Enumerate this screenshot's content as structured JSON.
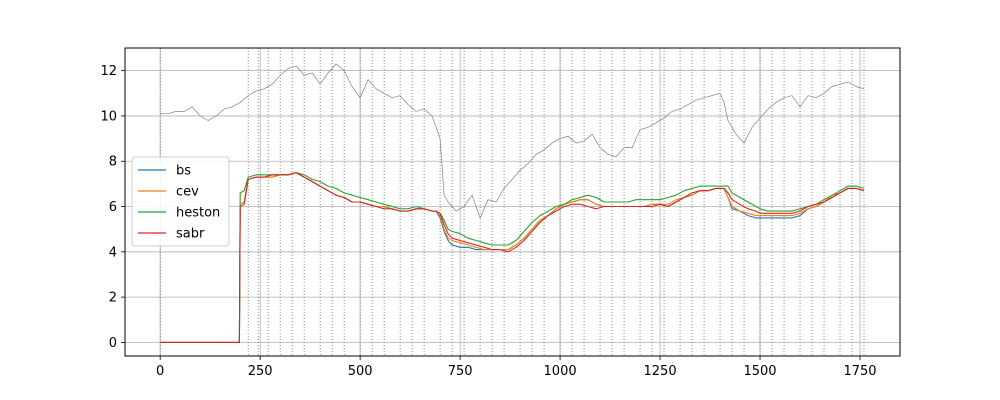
{
  "chart_data": {
    "type": "line",
    "title": "",
    "xlabel": "",
    "ylabel": "",
    "xlim": [
      -88,
      1850
    ],
    "ylim": [
      -0.6,
      13.0
    ],
    "xticks": [
      0,
      250,
      500,
      750,
      1000,
      1250,
      1500,
      1750
    ],
    "yticks": [
      0,
      2,
      4,
      6,
      8,
      10,
      12
    ],
    "grid": true,
    "legend_position": "left",
    "vertical_markers": [
      0,
      220,
      245,
      270,
      300,
      330,
      360,
      400,
      430,
      460,
      500,
      530,
      560,
      600,
      630,
      660,
      700,
      730,
      760,
      800,
      830,
      860,
      900,
      930,
      960,
      1000,
      1030,
      1060,
      1100,
      1130,
      1160,
      1200,
      1230,
      1260,
      1300,
      1330,
      1360,
      1400,
      1430,
      1460,
      1500,
      1530,
      1560,
      1600,
      1630,
      1660,
      1700,
      1730,
      1760
    ],
    "underlying": {
      "color": "#808080",
      "x": [
        0,
        20,
        40,
        60,
        80,
        100,
        120,
        140,
        160,
        180,
        200,
        220,
        240,
        260,
        280,
        300,
        320,
        340,
        360,
        380,
        400,
        420,
        440,
        460,
        480,
        500,
        520,
        540,
        560,
        580,
        600,
        620,
        640,
        660,
        680,
        700,
        710,
        720,
        740,
        760,
        780,
        800,
        820,
        840,
        860,
        880,
        900,
        920,
        940,
        960,
        980,
        1000,
        1020,
        1040,
        1060,
        1080,
        1100,
        1120,
        1140,
        1160,
        1180,
        1200,
        1220,
        1240,
        1260,
        1280,
        1300,
        1320,
        1340,
        1360,
        1380,
        1400,
        1410,
        1420,
        1440,
        1460,
        1480,
        1500,
        1520,
        1540,
        1560,
        1580,
        1600,
        1620,
        1640,
        1660,
        1680,
        1700,
        1720,
        1740,
        1760
      ],
      "values": [
        10.1,
        10.1,
        10.2,
        10.2,
        10.4,
        10.0,
        9.8,
        10.0,
        10.3,
        10.4,
        10.6,
        10.9,
        11.1,
        11.2,
        11.4,
        11.8,
        12.1,
        12.2,
        11.8,
        11.9,
        11.4,
        11.9,
        12.3,
        12.0,
        11.3,
        10.8,
        11.6,
        11.2,
        11.0,
        10.8,
        10.9,
        10.5,
        10.2,
        10.3,
        10.0,
        9.0,
        6.5,
        6.2,
        5.8,
        6.0,
        6.5,
        5.5,
        6.3,
        6.2,
        6.8,
        7.2,
        7.6,
        7.9,
        8.3,
        8.5,
        8.8,
        9.0,
        9.1,
        8.8,
        8.9,
        9.2,
        8.6,
        8.3,
        8.2,
        8.6,
        8.6,
        9.4,
        9.5,
        9.7,
        9.9,
        10.2,
        10.3,
        10.5,
        10.7,
        10.8,
        10.9,
        11.0,
        10.6,
        9.8,
        9.2,
        8.8,
        9.5,
        9.9,
        10.3,
        10.6,
        10.8,
        10.9,
        10.4,
        10.9,
        10.8,
        11.0,
        11.3,
        11.4,
        11.5,
        11.3,
        11.2
      ]
    },
    "series": [
      {
        "name": "bs",
        "color": "#1f77b4",
        "x": [
          0,
          198,
          200,
          210,
          220,
          240,
          260,
          280,
          300,
          320,
          340,
          360,
          380,
          400,
          420,
          440,
          460,
          480,
          500,
          520,
          540,
          560,
          580,
          600,
          620,
          640,
          660,
          680,
          690,
          700,
          710,
          720,
          730,
          750,
          770,
          790,
          810,
          830,
          850,
          870,
          890,
          910,
          930,
          950,
          970,
          990,
          1010,
          1030,
          1050,
          1070,
          1090,
          1110,
          1130,
          1150,
          1170,
          1190,
          1210,
          1230,
          1250,
          1270,
          1290,
          1310,
          1330,
          1350,
          1370,
          1390,
          1400,
          1410,
          1420,
          1430,
          1450,
          1470,
          1490,
          1500,
          1520,
          1540,
          1560,
          1580,
          1600,
          1620,
          1640,
          1660,
          1680,
          1700,
          1720,
          1740,
          1760
        ],
        "values": [
          0,
          0,
          6.1,
          6.2,
          7.2,
          7.3,
          7.3,
          7.3,
          7.4,
          7.4,
          7.5,
          7.3,
          7.1,
          6.9,
          6.7,
          6.5,
          6.4,
          6.2,
          6.2,
          6.1,
          6.0,
          6.0,
          5.9,
          5.8,
          5.8,
          5.9,
          5.9,
          5.8,
          5.8,
          5.5,
          4.9,
          4.5,
          4.3,
          4.2,
          4.2,
          4.1,
          4.1,
          4.1,
          4.1,
          4.1,
          4.3,
          4.6,
          5.0,
          5.4,
          5.6,
          5.9,
          6.1,
          6.2,
          6.3,
          6.3,
          6.1,
          6.0,
          6.0,
          6.0,
          6.0,
          6.0,
          6.0,
          6.1,
          6.1,
          6.0,
          6.2,
          6.4,
          6.5,
          6.7,
          6.7,
          6.8,
          6.8,
          6.8,
          6.4,
          5.9,
          5.8,
          5.6,
          5.5,
          5.5,
          5.5,
          5.5,
          5.5,
          5.5,
          5.6,
          5.9,
          6.0,
          6.2,
          6.4,
          6.6,
          6.8,
          6.8,
          6.7
        ]
      },
      {
        "name": "cev",
        "color": "#ff7f0e",
        "x": [
          0,
          198,
          200,
          210,
          220,
          240,
          260,
          280,
          300,
          320,
          340,
          360,
          380,
          400,
          420,
          440,
          460,
          480,
          500,
          520,
          540,
          560,
          580,
          600,
          620,
          640,
          660,
          680,
          690,
          700,
          710,
          720,
          730,
          750,
          770,
          790,
          810,
          830,
          850,
          870,
          890,
          910,
          930,
          950,
          970,
          990,
          1010,
          1030,
          1050,
          1070,
          1090,
          1110,
          1130,
          1150,
          1170,
          1190,
          1210,
          1230,
          1250,
          1270,
          1290,
          1310,
          1330,
          1350,
          1370,
          1390,
          1400,
          1410,
          1420,
          1430,
          1450,
          1470,
          1490,
          1500,
          1520,
          1540,
          1560,
          1580,
          1600,
          1620,
          1640,
          1660,
          1680,
          1700,
          1720,
          1740,
          1760
        ],
        "values": [
          0,
          0,
          6.1,
          6.2,
          7.2,
          7.3,
          7.3,
          7.3,
          7.4,
          7.4,
          7.5,
          7.3,
          7.1,
          6.9,
          6.7,
          6.5,
          6.4,
          6.2,
          6.2,
          6.1,
          6.0,
          6.0,
          5.9,
          5.8,
          5.8,
          5.9,
          5.9,
          5.8,
          5.8,
          5.6,
          5.0,
          4.6,
          4.5,
          4.4,
          4.3,
          4.2,
          4.1,
          4.1,
          4.1,
          4.1,
          4.3,
          4.6,
          5.0,
          5.4,
          5.6,
          5.9,
          6.1,
          6.2,
          6.3,
          6.3,
          6.1,
          6.0,
          6.0,
          6.0,
          6.0,
          6.0,
          6.0,
          6.1,
          6.1,
          6.1,
          6.3,
          6.4,
          6.5,
          6.7,
          6.7,
          6.8,
          6.8,
          6.8,
          6.4,
          6.0,
          5.8,
          5.7,
          5.6,
          5.6,
          5.6,
          5.6,
          5.6,
          5.6,
          5.7,
          5.9,
          6.0,
          6.2,
          6.5,
          6.6,
          6.8,
          6.8,
          6.7
        ]
      },
      {
        "name": "heston",
        "color": "#2ca02c",
        "x": [
          0,
          198,
          200,
          210,
          220,
          240,
          260,
          280,
          300,
          320,
          340,
          360,
          380,
          400,
          420,
          440,
          460,
          480,
          500,
          520,
          540,
          560,
          580,
          600,
          620,
          640,
          660,
          680,
          690,
          700,
          710,
          720,
          730,
          750,
          770,
          790,
          810,
          830,
          850,
          870,
          890,
          910,
          930,
          950,
          970,
          990,
          1010,
          1030,
          1050,
          1070,
          1090,
          1110,
          1130,
          1150,
          1170,
          1190,
          1210,
          1230,
          1250,
          1270,
          1290,
          1310,
          1330,
          1350,
          1370,
          1390,
          1400,
          1410,
          1420,
          1430,
          1450,
          1470,
          1490,
          1500,
          1520,
          1540,
          1560,
          1580,
          1600,
          1620,
          1640,
          1660,
          1680,
          1700,
          1720,
          1740,
          1760
        ],
        "values": [
          0,
          0,
          6.6,
          6.7,
          7.3,
          7.4,
          7.4,
          7.4,
          7.4,
          7.4,
          7.5,
          7.4,
          7.2,
          7.1,
          6.9,
          6.8,
          6.6,
          6.5,
          6.4,
          6.3,
          6.2,
          6.1,
          6.0,
          5.9,
          5.9,
          6.0,
          5.9,
          5.8,
          5.8,
          5.7,
          5.4,
          5.0,
          4.9,
          4.8,
          4.6,
          4.5,
          4.4,
          4.3,
          4.3,
          4.3,
          4.5,
          4.9,
          5.3,
          5.6,
          5.8,
          6.0,
          6.1,
          6.3,
          6.4,
          6.5,
          6.4,
          6.2,
          6.2,
          6.2,
          6.2,
          6.3,
          6.3,
          6.3,
          6.3,
          6.4,
          6.5,
          6.7,
          6.8,
          6.9,
          6.9,
          6.9,
          6.9,
          6.9,
          6.9,
          6.6,
          6.4,
          6.2,
          6.0,
          5.9,
          5.8,
          5.8,
          5.8,
          5.8,
          5.9,
          6.0,
          6.1,
          6.3,
          6.5,
          6.7,
          6.9,
          6.9,
          6.8
        ]
      },
      {
        "name": "sabr",
        "color": "#d62728",
        "x": [
          0,
          198,
          200,
          210,
          220,
          240,
          260,
          280,
          300,
          320,
          340,
          360,
          380,
          400,
          420,
          440,
          460,
          480,
          500,
          520,
          540,
          560,
          580,
          600,
          620,
          640,
          660,
          680,
          690,
          700,
          710,
          720,
          730,
          750,
          770,
          790,
          810,
          830,
          850,
          870,
          890,
          910,
          930,
          950,
          970,
          990,
          1010,
          1030,
          1050,
          1070,
          1090,
          1110,
          1130,
          1150,
          1170,
          1190,
          1210,
          1230,
          1250,
          1270,
          1290,
          1310,
          1330,
          1350,
          1370,
          1390,
          1400,
          1410,
          1420,
          1430,
          1450,
          1470,
          1490,
          1500,
          1520,
          1540,
          1560,
          1580,
          1600,
          1620,
          1640,
          1660,
          1680,
          1700,
          1720,
          1740,
          1760
        ],
        "values": [
          0,
          0,
          6.0,
          6.1,
          7.2,
          7.3,
          7.3,
          7.4,
          7.4,
          7.4,
          7.5,
          7.3,
          7.1,
          6.9,
          6.7,
          6.5,
          6.4,
          6.2,
          6.2,
          6.1,
          6.0,
          5.9,
          5.9,
          5.8,
          5.8,
          5.9,
          5.9,
          5.8,
          5.8,
          5.7,
          5.2,
          4.8,
          4.6,
          4.5,
          4.4,
          4.3,
          4.2,
          4.1,
          4.1,
          4.0,
          4.2,
          4.5,
          4.9,
          5.3,
          5.6,
          5.8,
          6.0,
          6.1,
          6.1,
          6.0,
          5.9,
          6.0,
          6.0,
          6.0,
          6.0,
          6.0,
          6.0,
          6.0,
          6.1,
          6.0,
          6.2,
          6.4,
          6.6,
          6.7,
          6.7,
          6.8,
          6.8,
          6.8,
          6.6,
          6.3,
          6.1,
          5.9,
          5.8,
          5.7,
          5.7,
          5.7,
          5.7,
          5.7,
          5.8,
          6.0,
          6.1,
          6.2,
          6.4,
          6.6,
          6.8,
          6.8,
          6.7
        ]
      }
    ]
  }
}
